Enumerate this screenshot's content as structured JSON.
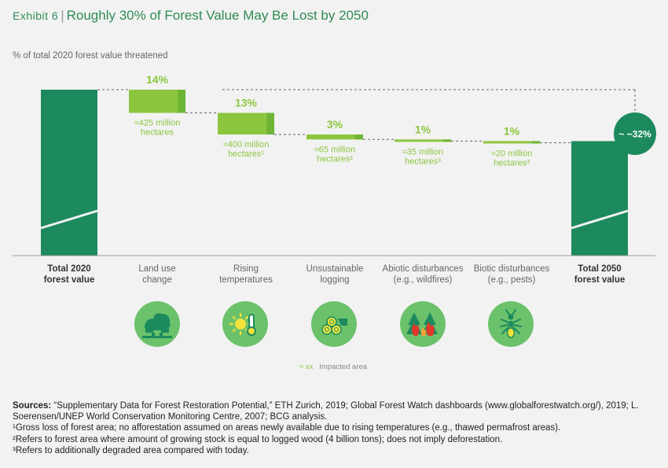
{
  "header": {
    "exhibit": "Exhibit 6",
    "separator": "|",
    "title": "Roughly 30% of Forest Value May Be Lost by 2050"
  },
  "subtitle": "% of total 2020 forest value threatened",
  "colors": {
    "dark_green": "#1d8a5e",
    "light_green": "#8cc63f",
    "light_green_side": "#6fb535",
    "icon_circle": "#6bc26b",
    "badge": "#1d8a5e"
  },
  "chart_data": {
    "type": "waterfall",
    "unit": "% of total 2020 forest value threatened",
    "ylim": [
      0,
      100
    ],
    "start": {
      "label_lines": [
        "Total 2020",
        "forest value"
      ],
      "value": 100
    },
    "end": {
      "label_lines": [
        "Total 2050",
        "forest value"
      ],
      "value": 69
    },
    "steps": [
      {
        "label_lines": [
          "Land use",
          "change"
        ],
        "value": 14,
        "value_label": "14%",
        "area_lines": [
          "≈425 million",
          "hectares"
        ]
      },
      {
        "label_lines": [
          "Rising",
          "temperatures"
        ],
        "value": 13,
        "value_label": "13%",
        "area_lines": [
          "≈400 million",
          "hectares¹"
        ]
      },
      {
        "label_lines": [
          "Unsustainable",
          "logging"
        ],
        "value": 3,
        "value_label": "3%",
        "area_lines": [
          "≈65 million",
          "hectares²"
        ]
      },
      {
        "label_lines": [
          "Abiotic disturbances",
          "(e.g., wildfires)"
        ],
        "value": 1,
        "value_label": "1%",
        "area_lines": [
          "≈35 million",
          "hectares³"
        ]
      },
      {
        "label_lines": [
          "Biotic disturbances",
          "(e.g., pests)"
        ],
        "value": 1,
        "value_label": "1%",
        "area_lines": [
          "≈20 million",
          "hectares³"
        ]
      }
    ],
    "total_change_label": "~ −32%"
  },
  "icons": [
    "land-use-icon",
    "sun-thermometer-icon",
    "logs-icon",
    "wildfire-icon",
    "ant-icon"
  ],
  "legend": {
    "swatch": "≈ xx",
    "label": "Impacted area"
  },
  "sources": {
    "label": "Sources:",
    "text": "“Supplementary Data for Forest Restoration Potential,” ETH Zurich, 2019; Global Forest Watch dashboards (www.globalforestwatch.org/), 2019; L. Soerensen/UNEP World Conservation Monitoring Centre, 2007; BCG analysis.",
    "notes": [
      "¹Gross loss of forest area; no afforestation assumed on areas newly available due to rising temperatures (e.g., thawed permafrost areas).",
      "²Refers to forest area where amount of growing stock is equal to logged wood (4 billion tons); does not imply deforestation.",
      "³Refers to additionally degraded area compared with today."
    ]
  }
}
